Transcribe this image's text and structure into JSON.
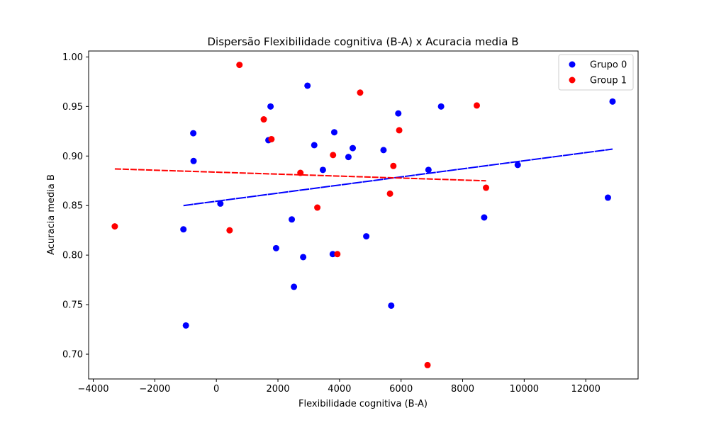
{
  "chart_data": {
    "type": "scatter",
    "title": "Dispersão Flexibilidade cognitiva (B-A) x Acuracia media B",
    "xlabel": "Flexibilidade cognitiva (B-A)",
    "ylabel": "Acuracia media B",
    "xlim": [
      -4150,
      13700
    ],
    "ylim": [
      0.675,
      1.006
    ],
    "xticks": [
      -4000,
      -2000,
      0,
      2000,
      4000,
      6000,
      8000,
      10000,
      12000
    ],
    "xtick_labels": [
      "−4000",
      "−2000",
      "0",
      "2000",
      "4000",
      "6000",
      "8000",
      "10000",
      "12000"
    ],
    "yticks": [
      0.7,
      0.75,
      0.8,
      0.85,
      0.9,
      0.95,
      1.0
    ],
    "ytick_labels": [
      "0.70",
      "0.75",
      "0.80",
      "0.85",
      "0.90",
      "0.95",
      "1.00"
    ],
    "grid": false,
    "legend_position": "top-right",
    "series": [
      {
        "name": "Grupo 0",
        "color": "#0000ff",
        "points": [
          [
            -1070,
            0.826
          ],
          [
            -990,
            0.729
          ],
          [
            -750,
            0.923
          ],
          [
            -740,
            0.895
          ],
          [
            130,
            0.852
          ],
          [
            1690,
            0.916
          ],
          [
            1760,
            0.95
          ],
          [
            1940,
            0.807
          ],
          [
            2450,
            0.836
          ],
          [
            2520,
            0.768
          ],
          [
            2820,
            0.798
          ],
          [
            2960,
            0.971
          ],
          [
            3180,
            0.911
          ],
          [
            3460,
            0.886
          ],
          [
            3780,
            0.801
          ],
          [
            3830,
            0.924
          ],
          [
            4290,
            0.899
          ],
          [
            4430,
            0.908
          ],
          [
            4870,
            0.819
          ],
          [
            5430,
            0.906
          ],
          [
            5680,
            0.749
          ],
          [
            5910,
            0.943
          ],
          [
            6890,
            0.886
          ],
          [
            7300,
            0.95
          ],
          [
            8700,
            0.838
          ],
          [
            9790,
            0.891
          ],
          [
            12720,
            0.858
          ],
          [
            12870,
            0.955
          ]
        ],
        "trend": {
          "x": [
            -1070,
            12870
          ],
          "y": [
            0.85,
            0.907
          ]
        }
      },
      {
        "name": "Group 1",
        "color": "#ff0000",
        "points": [
          [
            -3300,
            0.829
          ],
          [
            430,
            0.825
          ],
          [
            750,
            0.992
          ],
          [
            1540,
            0.937
          ],
          [
            1790,
            0.917
          ],
          [
            2730,
            0.883
          ],
          [
            3280,
            0.848
          ],
          [
            3790,
            0.901
          ],
          [
            3930,
            0.801
          ],
          [
            4670,
            0.964
          ],
          [
            5640,
            0.862
          ],
          [
            5750,
            0.89
          ],
          [
            5940,
            0.926
          ],
          [
            6860,
            0.689
          ],
          [
            8460,
            0.951
          ],
          [
            8760,
            0.868
          ]
        ],
        "trend": {
          "x": [
            -3300,
            8760
          ],
          "y": [
            0.887,
            0.875
          ]
        }
      }
    ]
  }
}
